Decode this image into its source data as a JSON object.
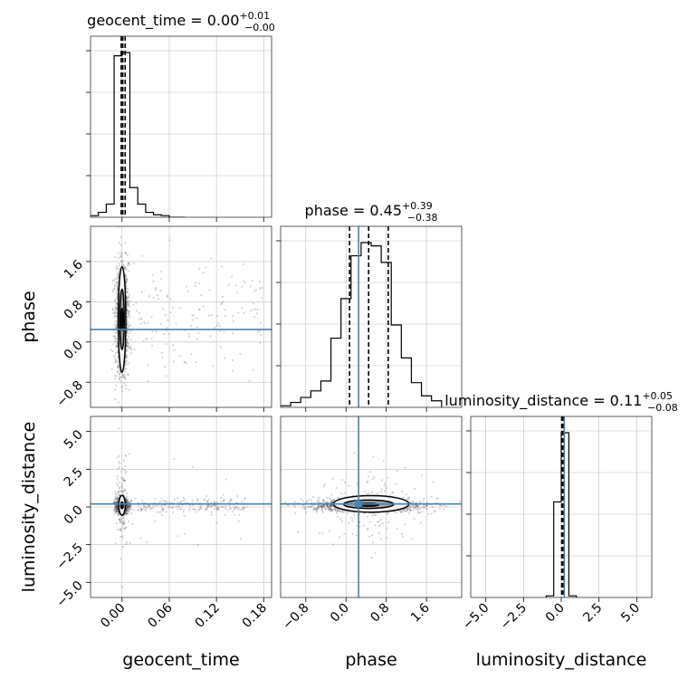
{
  "chart_data": {
    "type": "corner",
    "parameters": [
      "geocent_time",
      "phase",
      "luminosity_distance"
    ],
    "colors": {
      "truth": "#4682b4",
      "hist": "#000000",
      "grid": "#bfbfbf",
      "samples": "#555555"
    },
    "geocent_time": {
      "title": "geocent_time = 0.00",
      "title_sup": "+0.01",
      "title_sub": "−0.00",
      "xlabel": "geocent_time",
      "xlim": [
        -0.04,
        0.19
      ],
      "ticks": [
        0.0,
        0.06,
        0.12,
        0.18
      ],
      "tick_labels": [
        "0.00",
        "0.06",
        "0.12",
        "0.18"
      ],
      "hist_edges": [
        -0.04,
        -0.03,
        -0.02,
        -0.01,
        0.0,
        0.01,
        0.02,
        0.03,
        0.04,
        0.05,
        0.06,
        0.07,
        0.08
      ],
      "hist_counts": [
        0.01,
        0.03,
        0.08,
        0.98,
        1.0,
        0.18,
        0.08,
        0.03,
        0.015,
        0.01,
        0.0,
        0.0
      ],
      "quantiles": [
        -0.001,
        0.001,
        0.004
      ],
      "truth": null
    },
    "phase": {
      "title": "phase = 0.45",
      "title_sup": "+0.39",
      "title_sub": "−0.38",
      "ylabel": "phase",
      "xlabel": "phase",
      "lim": [
        -1.3,
        2.3
      ],
      "ticks": [
        -0.8,
        0.0,
        0.8,
        1.6
      ],
      "tick_labels": [
        "−0.8",
        "0.0",
        "0.8",
        "1.6"
      ],
      "hist_edges": [
        -1.3,
        -1.1,
        -0.9,
        -0.7,
        -0.5,
        -0.3,
        -0.1,
        0.1,
        0.3,
        0.5,
        0.7,
        0.9,
        1.1,
        1.3,
        1.5,
        1.7,
        1.9
      ],
      "hist_counts": [
        0.01,
        0.03,
        0.06,
        0.1,
        0.16,
        0.42,
        0.66,
        0.92,
        1.0,
        0.98,
        0.88,
        0.5,
        0.3,
        0.15,
        0.07,
        0.04
      ],
      "quantiles": [
        0.07,
        0.45,
        0.84
      ],
      "truth": 0.25
    },
    "luminosity_distance": {
      "title": "luminosity_distance = 0.11",
      "title_sup": "+0.05",
      "title_sub": "−0.08",
      "ylabel": "luminosity_distance",
      "xlabel": "luminosity_distance",
      "lim": [
        -6.0,
        6.0
      ],
      "ticks": [
        -5.0,
        -2.5,
        0.0,
        2.5,
        5.0
      ],
      "tick_labels": [
        "−5.0",
        "−2.5",
        "0.0",
        "2.5",
        "5.0"
      ],
      "hist_edges": [
        -1.0,
        -0.5,
        0.0,
        0.5,
        1.0
      ],
      "hist_counts": [
        0.01,
        0.58,
        1.0,
        0.01
      ],
      "quantiles": [
        0.03,
        0.11,
        0.16
      ],
      "truth": 0.2
    },
    "grid": true
  }
}
